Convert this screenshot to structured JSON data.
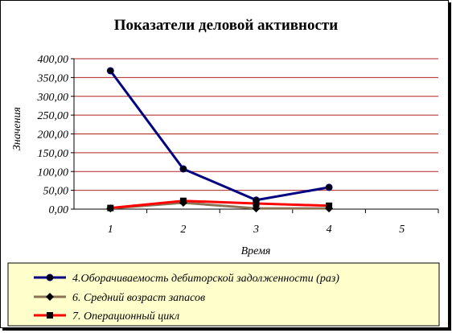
{
  "chart_data": {
    "type": "line",
    "title": "Показатели деловой активности",
    "xlabel": "Время",
    "ylabel": "Значения",
    "categories": [
      "1",
      "2",
      "3",
      "4",
      "5"
    ],
    "yticks": [
      "0,00",
      "50,00",
      "100,00",
      "150,00",
      "200,00",
      "250,00",
      "300,00",
      "350,00",
      "400,00"
    ],
    "ylim": [
      0,
      400
    ],
    "grid": true,
    "legend_position": "bottom",
    "series": [
      {
        "name": "4.Оборачиваемость дебиторской задолженности (раз)",
        "color": "#000080",
        "marker": "circle",
        "values": [
          368,
          107,
          24,
          58,
          null
        ]
      },
      {
        "name": "6. Средний возраст запасов",
        "color": "#8B7355",
        "marker": "diamond",
        "values": [
          2,
          17,
          2,
          2,
          null
        ]
      },
      {
        "name": "7. Операционный цикл",
        "color": "#FF0000",
        "marker": "square",
        "values": [
          3,
          22,
          15,
          9,
          null
        ]
      }
    ],
    "colors": {
      "gridline": "#B22222",
      "plot_background": "#FFFFFF",
      "legend_background": "#FFFFCC"
    }
  }
}
